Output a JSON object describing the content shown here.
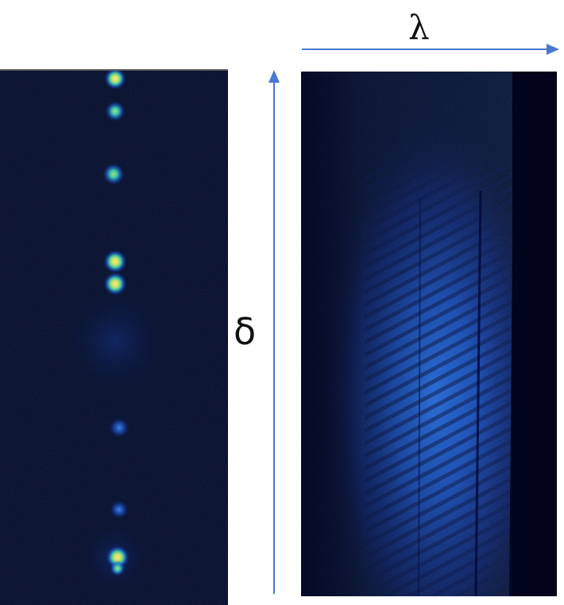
{
  "labels": {
    "horizontal_axis": "λ",
    "vertical_axis": "δ"
  },
  "colors": {
    "axis_arrow": "#4a78d0",
    "background_dark": "#02061c",
    "spot_core": "#e8e26a",
    "spot_mid": "#3fd0a6",
    "spot_glow": "#1a5ad8",
    "spectrum_glow": "#1f6cff"
  },
  "left_panel": {
    "description_visible": false,
    "spots": [
      {
        "brightness": "bright"
      },
      {
        "brightness": "medium"
      },
      {
        "brightness": "medium"
      },
      {
        "brightness": "bright"
      },
      {
        "brightness": "bright"
      },
      {
        "brightness": "dim"
      },
      {
        "brightness": "dim"
      },
      {
        "brightness": "bright"
      }
    ]
  },
  "right_panel": {
    "pattern": "spectral-interferogram"
  }
}
